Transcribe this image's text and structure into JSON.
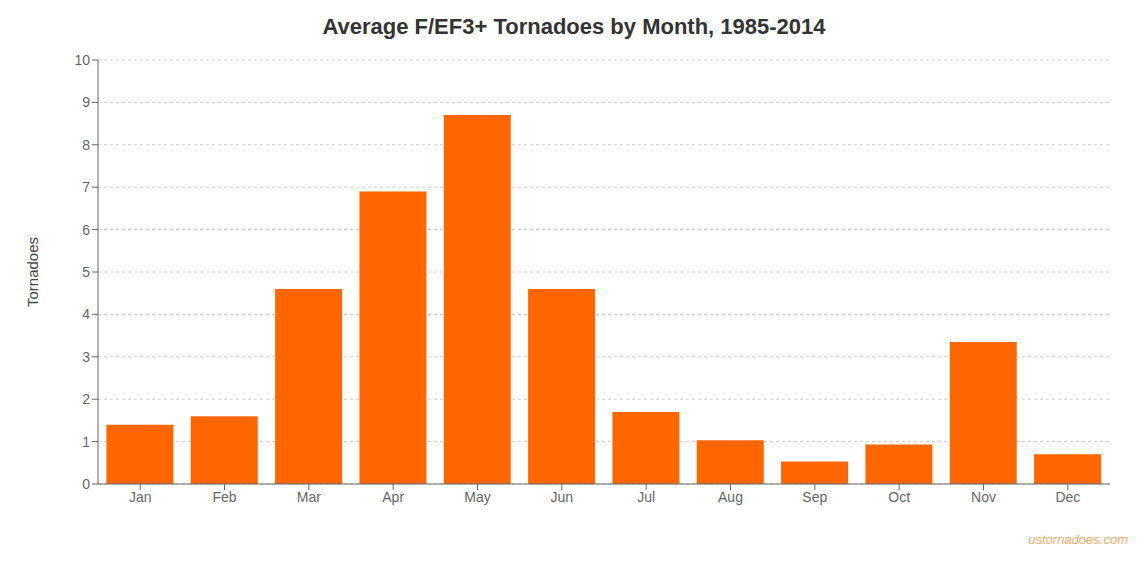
{
  "chart_data": {
    "type": "bar",
    "title": "Average F/EF3+ Tornadoes by Month, 1985-2014",
    "categories": [
      "Jan",
      "Feb",
      "Mar",
      "Apr",
      "May",
      "Jun",
      "Jul",
      "Aug",
      "Sep",
      "Oct",
      "Nov",
      "Dec"
    ],
    "values": [
      1.4,
      1.6,
      4.6,
      6.9,
      8.7,
      4.6,
      1.7,
      1.03,
      0.53,
      0.93,
      3.35,
      0.7
    ],
    "color": "#FF6600",
    "ylabel": "Tornadoes",
    "ylim": [
      0,
      10
    ],
    "yticks": [
      0,
      1,
      2,
      3,
      4,
      5,
      6,
      7,
      8,
      9,
      10
    ],
    "grid": true,
    "annotations": [
      {
        "text": "ustornadoes.com",
        "color": "#FFAA66"
      }
    ]
  }
}
